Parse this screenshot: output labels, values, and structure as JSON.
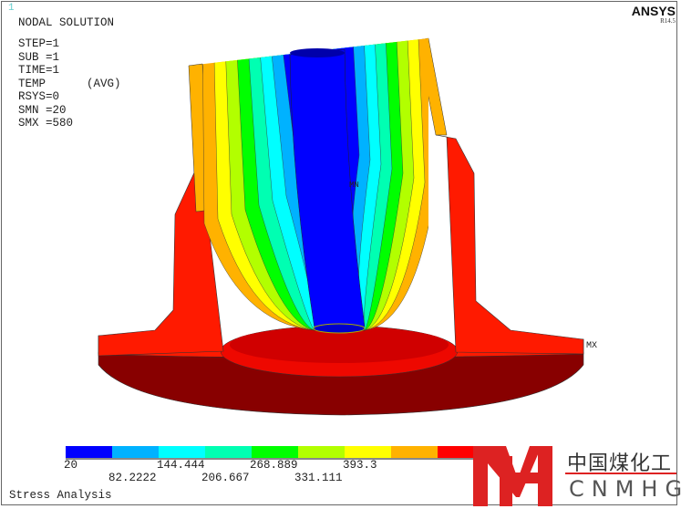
{
  "window_number": "1",
  "brand": {
    "name": "ANSYS",
    "release": "R14.5"
  },
  "info": {
    "title": "NODAL SOLUTION",
    "lines": [
      "STEP=1",
      "SUB =1",
      "TIME=1",
      "TEMP      (AVG)",
      "RSYS=0",
      "SMN =20",
      "SMX =580"
    ]
  },
  "markers": {
    "min": "MN",
    "max": "MX"
  },
  "legend": {
    "colors": [
      "#0000FF",
      "#00B2FF",
      "#00FFFF",
      "#00FFB2",
      "#00FF00",
      "#B2FF00",
      "#FFFF00",
      "#FFB200",
      "#FF0000"
    ],
    "labels_upper": [
      "20",
      "144.444",
      "268.889",
      "393.3"
    ],
    "labels_lower": [
      "82.2222",
      "206.667",
      "331.111"
    ]
  },
  "footer": "Stress Analysis",
  "watermark": {
    "cn": "中国煤化工",
    "en": "CNMHG"
  }
}
